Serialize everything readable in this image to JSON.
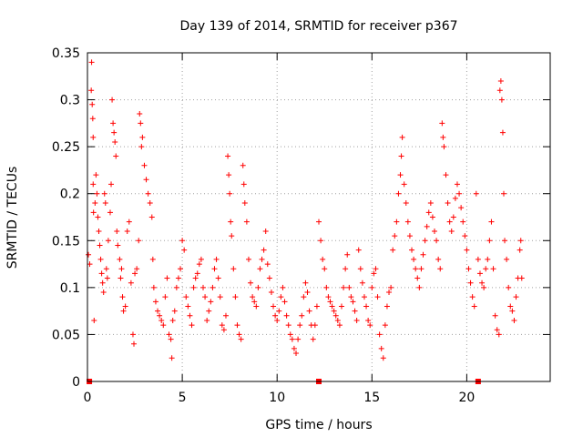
{
  "chart_data": {
    "type": "scatter",
    "title": "Day 139 of 2014, SRMTID for receiver p367",
    "xlabel": "GPS time / hours",
    "ylabel": "SRMTID / TECUs",
    "xlim": [
      0,
      24.4
    ],
    "ylim": [
      0,
      0.35
    ],
    "x_ticks": [
      0,
      5,
      10,
      15,
      20
    ],
    "x_tick_labels": [
      "0",
      "5",
      "10",
      "15",
      "20"
    ],
    "y_ticks": [
      0,
      0.05,
      0.1,
      0.15,
      0.2,
      0.25,
      0.3,
      0.35
    ],
    "y_tick_labels": [
      "0",
      "0.05",
      "0.1",
      "0.15",
      "0.2",
      "0.25",
      "0.3",
      "0.35"
    ],
    "grid": true,
    "marker": "+",
    "color": "#ff0000",
    "series": [
      {
        "name": "p367",
        "points": [
          [
            0.05,
            0.135
          ],
          [
            0.12,
            0.125
          ],
          [
            0.2,
            0.31
          ],
          [
            0.22,
            0.34
          ],
          [
            0.25,
            0.295
          ],
          [
            0.28,
            0.28
          ],
          [
            0.3,
            0.26
          ],
          [
            0.3,
            0.21
          ],
          [
            0.32,
            0.18
          ],
          [
            0.35,
            0.065
          ],
          [
            0.4,
            0.19
          ],
          [
            0.45,
            0.22
          ],
          [
            0.5,
            0.2
          ],
          [
            0.55,
            0.175
          ],
          [
            0.6,
            0.16
          ],
          [
            0.65,
            0.145
          ],
          [
            0.7,
            0.13
          ],
          [
            0.75,
            0.115
          ],
          [
            0.8,
            0.105
          ],
          [
            0.85,
            0.095
          ],
          [
            0.9,
            0.2
          ],
          [
            0.95,
            0.19
          ],
          [
            1.0,
            0.12
          ],
          [
            1.05,
            0.11
          ],
          [
            1.1,
            0.15
          ],
          [
            1.2,
            0.18
          ],
          [
            1.25,
            0.21
          ],
          [
            1.3,
            0.3
          ],
          [
            1.35,
            0.275
          ],
          [
            1.4,
            0.265
          ],
          [
            1.45,
            0.255
          ],
          [
            1.5,
            0.24
          ],
          [
            1.55,
            0.16
          ],
          [
            1.6,
            0.145
          ],
          [
            1.7,
            0.13
          ],
          [
            1.75,
            0.11
          ],
          [
            1.8,
            0.12
          ],
          [
            1.85,
            0.09
          ],
          [
            1.9,
            0.075
          ],
          [
            2.0,
            0.08
          ],
          [
            2.1,
            0.16
          ],
          [
            2.2,
            0.17
          ],
          [
            2.3,
            0.105
          ],
          [
            2.4,
            0.05
          ],
          [
            2.45,
            0.04
          ],
          [
            2.5,
            0.115
          ],
          [
            2.6,
            0.12
          ],
          [
            2.7,
            0.15
          ],
          [
            2.75,
            0.285
          ],
          [
            2.8,
            0.275
          ],
          [
            2.85,
            0.25
          ],
          [
            2.9,
            0.26
          ],
          [
            3.0,
            0.23
          ],
          [
            3.1,
            0.215
          ],
          [
            3.2,
            0.2
          ],
          [
            3.3,
            0.19
          ],
          [
            3.4,
            0.175
          ],
          [
            3.45,
            0.13
          ],
          [
            3.5,
            0.1
          ],
          [
            3.6,
            0.085
          ],
          [
            3.7,
            0.075
          ],
          [
            3.8,
            0.07
          ],
          [
            3.9,
            0.065
          ],
          [
            4.0,
            0.06
          ],
          [
            4.1,
            0.09
          ],
          [
            4.2,
            0.11
          ],
          [
            4.3,
            0.05
          ],
          [
            4.4,
            0.045
          ],
          [
            4.45,
            0.025
          ],
          [
            4.5,
            0.065
          ],
          [
            4.6,
            0.075
          ],
          [
            4.7,
            0.1
          ],
          [
            4.8,
            0.11
          ],
          [
            4.9,
            0.12
          ],
          [
            5.0,
            0.15
          ],
          [
            5.1,
            0.14
          ],
          [
            5.2,
            0.09
          ],
          [
            5.3,
            0.08
          ],
          [
            5.4,
            0.07
          ],
          [
            5.5,
            0.06
          ],
          [
            5.6,
            0.1
          ],
          [
            5.7,
            0.11
          ],
          [
            5.8,
            0.115
          ],
          [
            5.9,
            0.125
          ],
          [
            6.0,
            0.13
          ],
          [
            6.1,
            0.1
          ],
          [
            6.2,
            0.09
          ],
          [
            6.3,
            0.065
          ],
          [
            6.4,
            0.075
          ],
          [
            6.5,
            0.085
          ],
          [
            6.6,
            0.1
          ],
          [
            6.7,
            0.12
          ],
          [
            6.8,
            0.13
          ],
          [
            6.9,
            0.11
          ],
          [
            7.0,
            0.09
          ],
          [
            7.1,
            0.06
          ],
          [
            7.2,
            0.055
          ],
          [
            7.3,
            0.07
          ],
          [
            7.4,
            0.24
          ],
          [
            7.45,
            0.22
          ],
          [
            7.5,
            0.2
          ],
          [
            7.55,
            0.17
          ],
          [
            7.6,
            0.155
          ],
          [
            7.7,
            0.12
          ],
          [
            7.8,
            0.09
          ],
          [
            7.9,
            0.06
          ],
          [
            8.0,
            0.05
          ],
          [
            8.1,
            0.045
          ],
          [
            8.2,
            0.23
          ],
          [
            8.25,
            0.21
          ],
          [
            8.3,
            0.19
          ],
          [
            8.4,
            0.17
          ],
          [
            8.5,
            0.13
          ],
          [
            8.6,
            0.105
          ],
          [
            8.7,
            0.09
          ],
          [
            8.8,
            0.085
          ],
          [
            8.9,
            0.08
          ],
          [
            9.0,
            0.1
          ],
          [
            9.1,
            0.12
          ],
          [
            9.2,
            0.13
          ],
          [
            9.3,
            0.14
          ],
          [
            9.4,
            0.16
          ],
          [
            9.5,
            0.125
          ],
          [
            9.6,
            0.11
          ],
          [
            9.7,
            0.095
          ],
          [
            9.8,
            0.08
          ],
          [
            9.9,
            0.07
          ],
          [
            10.0,
            0.065
          ],
          [
            10.1,
            0.075
          ],
          [
            10.2,
            0.09
          ],
          [
            10.3,
            0.1
          ],
          [
            10.4,
            0.085
          ],
          [
            10.5,
            0.07
          ],
          [
            10.6,
            0.06
          ],
          [
            10.7,
            0.05
          ],
          [
            10.8,
            0.045
          ],
          [
            10.9,
            0.035
          ],
          [
            11.0,
            0.03
          ],
          [
            11.1,
            0.045
          ],
          [
            11.2,
            0.06
          ],
          [
            11.3,
            0.07
          ],
          [
            11.4,
            0.09
          ],
          [
            11.5,
            0.105
          ],
          [
            11.6,
            0.095
          ],
          [
            11.7,
            0.075
          ],
          [
            11.8,
            0.06
          ],
          [
            11.9,
            0.045
          ],
          [
            12.0,
            0.06
          ],
          [
            12.1,
            0.08
          ],
          [
            12.2,
            0.17
          ],
          [
            12.3,
            0.15
          ],
          [
            12.4,
            0.13
          ],
          [
            12.5,
            0.12
          ],
          [
            12.6,
            0.1
          ],
          [
            12.7,
            0.09
          ],
          [
            12.8,
            0.085
          ],
          [
            12.9,
            0.08
          ],
          [
            13.0,
            0.075
          ],
          [
            13.1,
            0.07
          ],
          [
            13.2,
            0.065
          ],
          [
            13.3,
            0.06
          ],
          [
            13.4,
            0.08
          ],
          [
            13.5,
            0.1
          ],
          [
            13.6,
            0.12
          ],
          [
            13.7,
            0.135
          ],
          [
            13.8,
            0.1
          ],
          [
            13.9,
            0.09
          ],
          [
            14.0,
            0.085
          ],
          [
            14.1,
            0.075
          ],
          [
            14.2,
            0.065
          ],
          [
            14.3,
            0.14
          ],
          [
            14.4,
            0.12
          ],
          [
            14.5,
            0.105
          ],
          [
            14.6,
            0.09
          ],
          [
            14.7,
            0.08
          ],
          [
            14.8,
            0.065
          ],
          [
            14.9,
            0.06
          ],
          [
            15.0,
            0.1
          ],
          [
            15.1,
            0.115
          ],
          [
            15.2,
            0.12
          ],
          [
            15.3,
            0.09
          ],
          [
            15.4,
            0.05
          ],
          [
            15.5,
            0.035
          ],
          [
            15.6,
            0.025
          ],
          [
            15.7,
            0.06
          ],
          [
            15.8,
            0.08
          ],
          [
            15.9,
            0.095
          ],
          [
            16.0,
            0.1
          ],
          [
            16.1,
            0.14
          ],
          [
            16.2,
            0.155
          ],
          [
            16.3,
            0.17
          ],
          [
            16.4,
            0.2
          ],
          [
            16.5,
            0.22
          ],
          [
            16.55,
            0.24
          ],
          [
            16.6,
            0.26
          ],
          [
            16.7,
            0.21
          ],
          [
            16.8,
            0.19
          ],
          [
            16.9,
            0.17
          ],
          [
            17.0,
            0.155
          ],
          [
            17.1,
            0.14
          ],
          [
            17.2,
            0.13
          ],
          [
            17.3,
            0.12
          ],
          [
            17.4,
            0.11
          ],
          [
            17.5,
            0.1
          ],
          [
            17.6,
            0.12
          ],
          [
            17.7,
            0.135
          ],
          [
            17.8,
            0.15
          ],
          [
            17.9,
            0.165
          ],
          [
            18.0,
            0.18
          ],
          [
            18.1,
            0.19
          ],
          [
            18.2,
            0.175
          ],
          [
            18.3,
            0.16
          ],
          [
            18.4,
            0.15
          ],
          [
            18.5,
            0.13
          ],
          [
            18.6,
            0.12
          ],
          [
            18.7,
            0.275
          ],
          [
            18.75,
            0.26
          ],
          [
            18.8,
            0.25
          ],
          [
            18.9,
            0.22
          ],
          [
            19.0,
            0.19
          ],
          [
            19.1,
            0.17
          ],
          [
            19.2,
            0.16
          ],
          [
            19.3,
            0.175
          ],
          [
            19.4,
            0.195
          ],
          [
            19.5,
            0.21
          ],
          [
            19.6,
            0.2
          ],
          [
            19.7,
            0.185
          ],
          [
            19.8,
            0.17
          ],
          [
            19.9,
            0.155
          ],
          [
            20.0,
            0.14
          ],
          [
            20.1,
            0.12
          ],
          [
            20.2,
            0.105
          ],
          [
            20.3,
            0.09
          ],
          [
            20.4,
            0.08
          ],
          [
            20.5,
            0.2
          ],
          [
            20.6,
            0.13
          ],
          [
            20.7,
            0.115
          ],
          [
            20.8,
            0.105
          ],
          [
            20.9,
            0.1
          ],
          [
            21.0,
            0.12
          ],
          [
            21.1,
            0.13
          ],
          [
            21.2,
            0.15
          ],
          [
            21.3,
            0.17
          ],
          [
            21.4,
            0.12
          ],
          [
            21.5,
            0.07
          ],
          [
            21.6,
            0.055
          ],
          [
            21.7,
            0.05
          ],
          [
            21.75,
            0.31
          ],
          [
            21.8,
            0.32
          ],
          [
            21.85,
            0.3
          ],
          [
            21.9,
            0.265
          ],
          [
            21.95,
            0.2
          ],
          [
            22.0,
            0.15
          ],
          [
            22.1,
            0.13
          ],
          [
            22.2,
            0.1
          ],
          [
            22.3,
            0.08
          ],
          [
            22.4,
            0.075
          ],
          [
            22.5,
            0.065
          ],
          [
            22.6,
            0.09
          ],
          [
            22.7,
            0.11
          ],
          [
            22.8,
            0.14
          ],
          [
            22.85,
            0.15
          ],
          [
            22.9,
            0.11
          ]
        ]
      }
    ],
    "zero_markers_x": [
      0.1,
      12.2,
      20.6
    ]
  }
}
